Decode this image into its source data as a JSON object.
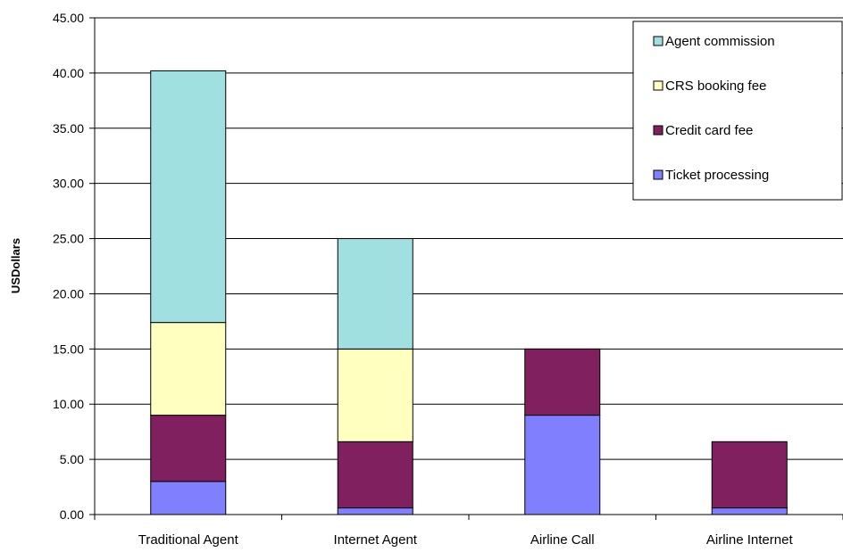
{
  "chart_data": {
    "type": "bar",
    "stacked": true,
    "title": "",
    "xlabel": "",
    "ylabel": "USDollars",
    "ylim": [
      0,
      45
    ],
    "y_ticks": [
      "0.00",
      "5.00",
      "10.00",
      "15.00",
      "20.00",
      "25.00",
      "30.00",
      "35.00",
      "40.00",
      "45.00"
    ],
    "categories": [
      "Traditional Agent",
      "Internet Agent",
      "Airline Call",
      "Airline Internet"
    ],
    "grid": true,
    "legend_position": "top-right",
    "series": [
      {
        "name": "Ticket processing",
        "color": "#8080ff",
        "values": [
          3.0,
          0.6,
          9.0,
          0.6
        ]
      },
      {
        "name": "Credit card fee",
        "color": "#80205f",
        "values": [
          6.0,
          6.0,
          6.0,
          6.0
        ]
      },
      {
        "name": "CRS booking fee",
        "color": "#ffffc0",
        "values": [
          8.4,
          8.4,
          0.0,
          0.0
        ]
      },
      {
        "name": "Agent commission",
        "color": "#a0e0e0",
        "values": [
          22.8,
          10.0,
          0.0,
          0.0
        ]
      }
    ],
    "legend_order": [
      "Agent commission",
      "CRS booking fee",
      "Credit card fee",
      "Ticket processing"
    ]
  }
}
